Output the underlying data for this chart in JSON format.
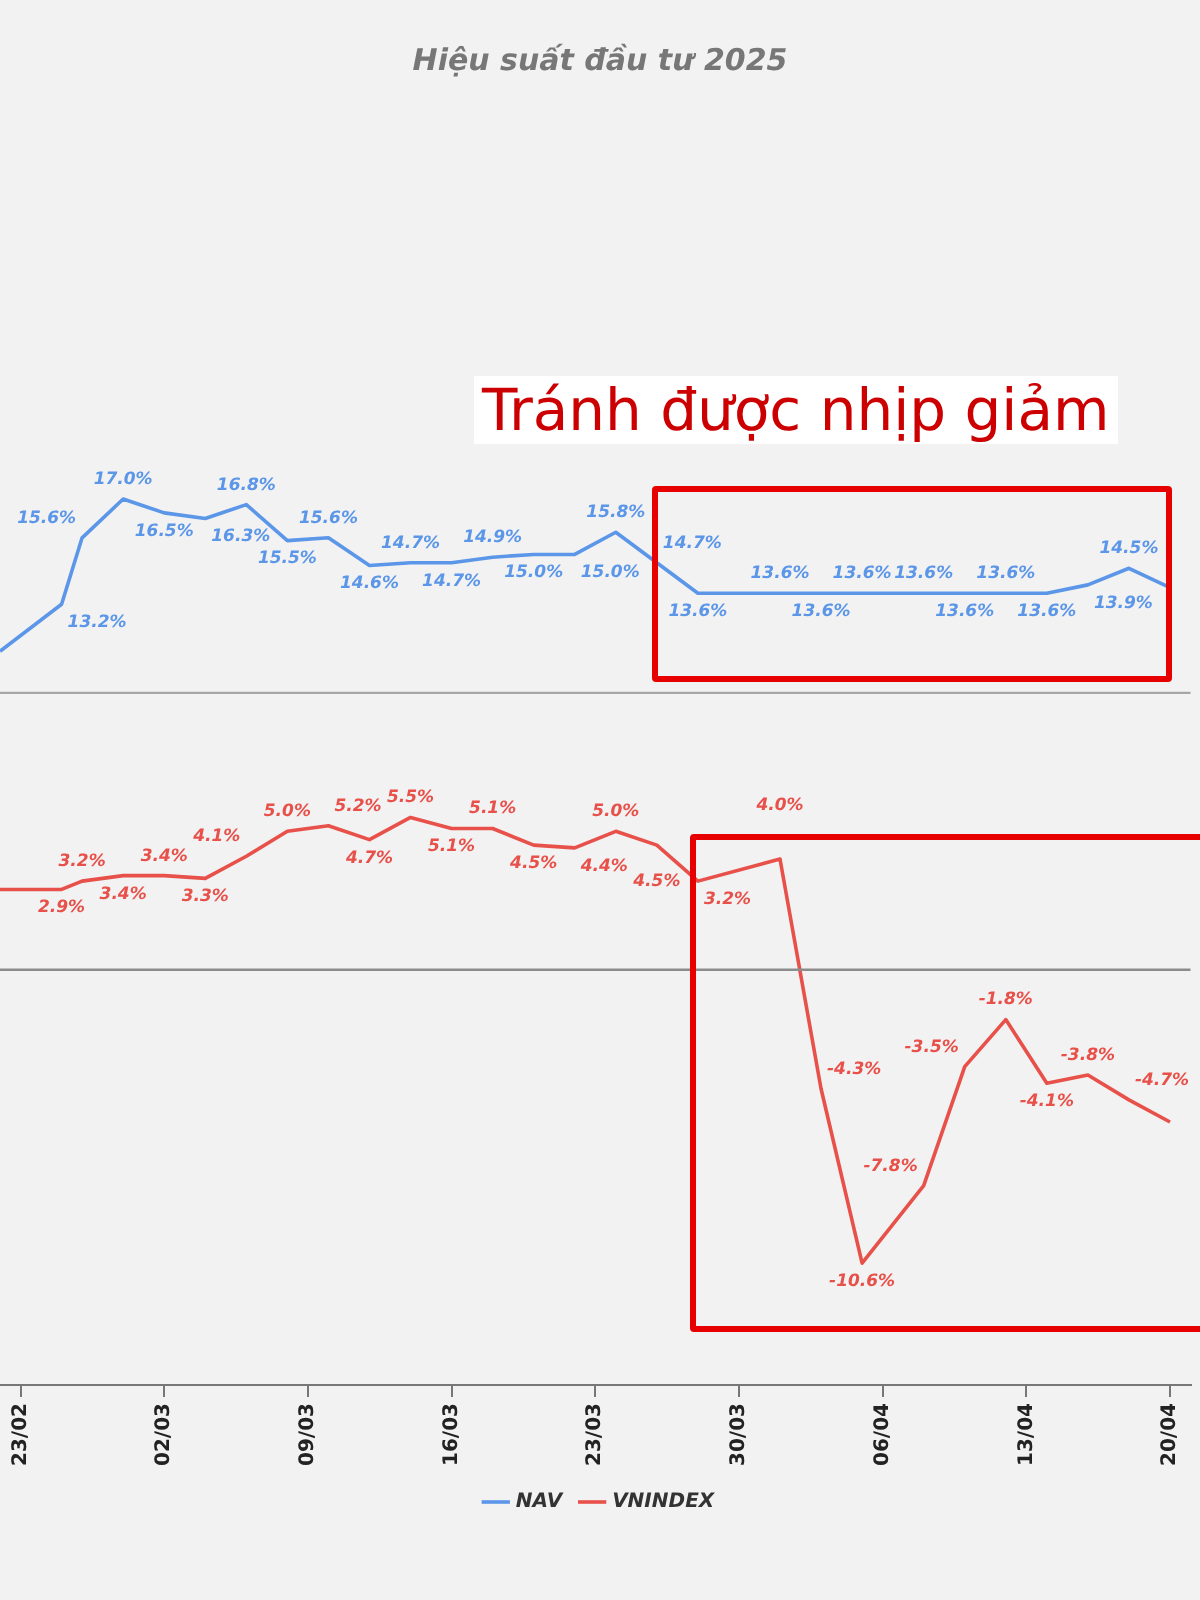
{
  "chart_data": {
    "type": "line",
    "title": "Hiệu suất đầu tư 2025",
    "annotations": [
      "Tránh được nhịp giảm"
    ],
    "x": [
      "--02-22",
      "--02-25",
      "--02-26",
      "--02-28",
      "--03-02",
      "--03-04",
      "--03-06",
      "--03-08",
      "--03-10",
      "--03-12",
      "--03-14",
      "--03-16",
      "--03-18",
      "--03-20",
      "--03-22",
      "--03-24",
      "--03-26",
      "--03-28",
      "--04-01",
      "--04-03",
      "--04-05",
      "--04-08",
      "--04-10",
      "--04-12",
      "--04-14",
      "--04-16",
      "--04-18",
      "--04-20"
    ],
    "series": [
      {
        "name": "NAV",
        "color": "#5b96e8",
        "values": [
          11.5,
          13.2,
          15.6,
          17.0,
          16.5,
          16.3,
          16.8,
          15.5,
          15.6,
          14.6,
          14.7,
          14.7,
          14.9,
          15.0,
          15.0,
          15.8,
          14.7,
          13.6,
          13.6,
          13.6,
          13.6,
          13.6,
          13.6,
          13.6,
          13.6,
          13.9,
          14.5,
          13.8
        ],
        "value_labels": [
          null,
          "13.2%",
          "15.6%",
          "17.0%",
          "16.5%",
          "16.3%",
          "16.8%",
          "15.5%",
          "15.6%",
          "14.6%",
          "14.7%",
          "14.7%",
          "14.9%",
          "15.0%",
          "15.0%",
          "15.8%",
          "14.7%",
          "13.6%",
          "13.6%",
          "13.6%",
          "13.6%",
          "13.6%",
          "13.6%",
          "13.6%",
          "13.6%",
          "13.9%",
          "14.5%",
          null
        ]
      },
      {
        "name": "VNINDEX",
        "color": "#e8504a",
        "values": [
          2.9,
          2.9,
          3.2,
          3.4,
          3.4,
          3.3,
          4.1,
          5.0,
          5.2,
          4.7,
          5.5,
          5.1,
          5.1,
          4.5,
          4.4,
          5.0,
          4.5,
          3.2,
          4.0,
          -4.3,
          -10.6,
          -7.8,
          -3.5,
          -1.8,
          -4.1,
          -3.8,
          -4.7,
          -5.5
        ],
        "value_labels": [
          null,
          "2.9%",
          "3.2%",
          "3.4%",
          "3.4%",
          "3.3%",
          "4.1%",
          "5.0%",
          "5.2%",
          "4.7%",
          "5.5%",
          "5.1%",
          "5.1%",
          "4.5%",
          "4.4%",
          "5.0%",
          "4.5%",
          "3.2%",
          "4.0%",
          "-4.3%",
          "-10.6%",
          "-7.8%",
          "-3.5%",
          "-1.8%",
          "-4.1%",
          "-3.8%",
          "-4.7%",
          null
        ]
      }
    ],
    "xlim": [
      "--02-22",
      "--04-21"
    ],
    "xticks": [
      {
        "value": "--02-23",
        "label": "23/02"
      },
      {
        "value": "--03-02",
        "label": "02/03"
      },
      {
        "value": "--03-09",
        "label": "09/03"
      },
      {
        "value": "--03-16",
        "label": "16/03"
      },
      {
        "value": "--03-23",
        "label": "23/03"
      },
      {
        "value": "--03-30",
        "label": "30/03"
      },
      {
        "value": "--04-06",
        "label": "06/04"
      },
      {
        "value": "--04-13",
        "label": "13/04"
      },
      {
        "value": "--04-20",
        "label": "20/04"
      }
    ],
    "ref_lines": [
      {
        "axis": "y",
        "value": 0,
        "color": "#8c8c8c"
      },
      {
        "axis": "y",
        "value": 10,
        "color": "#a6a6a6"
      }
    ],
    "tick_labels": "x",
    "legend": "bottom",
    "marker": "none",
    "line_style": "solid"
  }
}
